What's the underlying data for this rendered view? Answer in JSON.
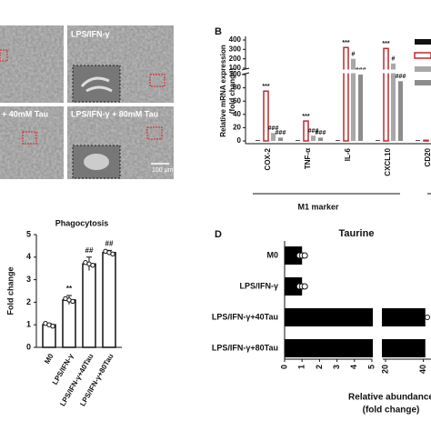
{
  "panel_a": {
    "labels": [
      "LPS/IFN-γ",
      "+ 40mM Tau",
      "LPS/IFN-γ + 80mM Tau"
    ],
    "scale_bar": "100 μm"
  },
  "chart_data": [
    {
      "panel": "B",
      "type": "broken-bar",
      "ylabel": [
        "Relative mRNA expression",
        "(fold change)"
      ],
      "categories": [
        "COX-2",
        "TNF-α",
        "IL-6",
        "CXCL10",
        "CD20"
      ],
      "group_label": "M1 marker",
      "ylim_segments": [
        [
          0,
          100
        ],
        [
          100,
          400
        ]
      ],
      "yticks_segments": [
        [
          0,
          20,
          40,
          60,
          80,
          100
        ],
        [
          100,
          200,
          300,
          400
        ]
      ],
      "series": [
        {
          "color": "#111111",
          "values": [
            1,
            1,
            1,
            1,
            1
          ]
        },
        {
          "color": "#c0282d",
          "outline": true,
          "values": [
            75,
            30,
            320,
            310,
            1
          ],
          "annotations": [
            "***",
            "***",
            "***",
            "***",
            null
          ]
        },
        {
          "color": "#a8a8a8",
          "values": [
            12,
            8,
            200,
            150,
            null
          ],
          "annotations": [
            "###",
            "###",
            "#",
            "#",
            null
          ]
        },
        {
          "color": "#8c8c8c",
          "values": [
            5,
            5,
            100,
            90,
            null
          ],
          "annotations": [
            "###",
            "###",
            "###",
            "###",
            null
          ]
        }
      ]
    },
    {
      "type": "bar",
      "title": "Phagocytosis",
      "ylabel": "Fold change",
      "categories": [
        "M0",
        "LPS/IFN-γ",
        "LPS/IFN-γ+40Tau",
        "LPS/IFN-γ+80Tau"
      ],
      "values": [
        1,
        2.1,
        3.7,
        4.2
      ],
      "errors": [
        0.05,
        0.2,
        0.3,
        0.1
      ],
      "annotations": [
        null,
        "**",
        "##",
        "##"
      ],
      "color": "#ffffff",
      "ylim": [
        0,
        5
      ],
      "yticks": [
        0,
        1,
        2,
        3,
        4,
        5
      ]
    },
    {
      "panel": "D",
      "type": "broken-hbar",
      "title": "Taurine",
      "categories": [
        "M0",
        "LPS/IFN-γ",
        "LPS/IFN-γ+40Tau",
        "LPS/IFN-γ+80Tau"
      ],
      "values": [
        1,
        1,
        41,
        41
      ],
      "color": "#000000",
      "xlim_segments": [
        [
          0,
          5
        ],
        [
          20,
          44
        ]
      ],
      "xticks_segments": [
        [
          0,
          1,
          2,
          3,
          4,
          5
        ],
        [
          20,
          40
        ]
      ],
      "xlabel": [
        "Relative abundance",
        "(fold change)"
      ]
    }
  ]
}
